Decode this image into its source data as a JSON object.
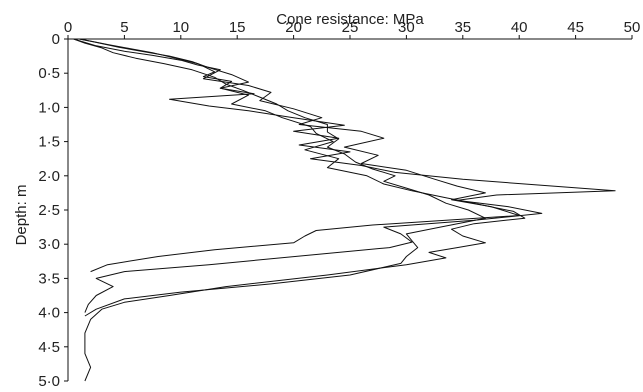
{
  "chart_data": {
    "type": "line",
    "orientation": "depth-profile",
    "xlabel": "Cone resistance: MPa",
    "ylabel": "Depth: m",
    "x_axis_position": "top",
    "y_axis_inverted": true,
    "xlim": [
      0,
      50
    ],
    "ylim": [
      0,
      5.0
    ],
    "x_ticks": [
      {
        "value": 0,
        "label": "0"
      },
      {
        "value": 5,
        "label": "5"
      },
      {
        "value": 10,
        "label": "10"
      },
      {
        "value": 15,
        "label": "15"
      },
      {
        "value": 20,
        "label": "20"
      },
      {
        "value": 25,
        "label": "25"
      },
      {
        "value": 30,
        "label": "30"
      },
      {
        "value": 35,
        "label": "35"
      },
      {
        "value": 40,
        "label": "40"
      },
      {
        "value": 45,
        "label": "45"
      },
      {
        "value": 50,
        "label": "50"
      }
    ],
    "y_ticks": [
      {
        "value": 0,
        "label": "0"
      },
      {
        "value": 0.5,
        "label": "0·5"
      },
      {
        "value": 1.0,
        "label": "1·0"
      },
      {
        "value": 1.5,
        "label": "1·5"
      },
      {
        "value": 2.0,
        "label": "2·0"
      },
      {
        "value": 2.5,
        "label": "2·5"
      },
      {
        "value": 3.0,
        "label": "3·0"
      },
      {
        "value": 3.5,
        "label": "3·5"
      },
      {
        "value": 4.0,
        "label": "4·0"
      },
      {
        "value": 4.5,
        "label": "4·5"
      },
      {
        "value": 5.0,
        "label": "5·0"
      }
    ],
    "grid": false,
    "legend": "none",
    "line_color": "#111111",
    "series": [
      {
        "points": [
          {
            "x": 1.0,
            "y": 0.0
          },
          {
            "x": 2.0,
            "y": 0.03
          },
          {
            "x": 3.5,
            "y": 0.08
          },
          {
            "x": 5.5,
            "y": 0.14
          },
          {
            "x": 7.5,
            "y": 0.2
          },
          {
            "x": 9.5,
            "y": 0.28
          },
          {
            "x": 11.5,
            "y": 0.36
          },
          {
            "x": 13.0,
            "y": 0.48
          },
          {
            "x": 12.0,
            "y": 0.55
          },
          {
            "x": 14.5,
            "y": 0.62
          },
          {
            "x": 13.5,
            "y": 0.72
          },
          {
            "x": 16.0,
            "y": 0.82
          },
          {
            "x": 14.5,
            "y": 0.95
          },
          {
            "x": 17.5,
            "y": 1.05
          },
          {
            "x": 19.0,
            "y": 1.15
          },
          {
            "x": 21.5,
            "y": 1.28
          },
          {
            "x": 22.0,
            "y": 1.38
          },
          {
            "x": 23.5,
            "y": 1.5
          },
          {
            "x": 21.0,
            "y": 1.62
          },
          {
            "x": 24.0,
            "y": 1.75
          },
          {
            "x": 23.0,
            "y": 1.88
          },
          {
            "x": 26.5,
            "y": 2.0
          },
          {
            "x": 28.0,
            "y": 2.12
          },
          {
            "x": 30.5,
            "y": 2.22
          },
          {
            "x": 33.5,
            "y": 2.32
          },
          {
            "x": 36.5,
            "y": 2.42
          },
          {
            "x": 39.5,
            "y": 2.52
          },
          {
            "x": 40.5,
            "y": 2.62
          },
          {
            "x": 36.0,
            "y": 2.7
          },
          {
            "x": 34.0,
            "y": 2.78
          },
          {
            "x": 35.0,
            "y": 2.88
          },
          {
            "x": 37.0,
            "y": 2.98
          },
          {
            "x": 34.5,
            "y": 3.05
          },
          {
            "x": 32.0,
            "y": 3.12
          },
          {
            "x": 33.5,
            "y": 3.2
          },
          {
            "x": 30.0,
            "y": 3.3
          },
          {
            "x": 23.0,
            "y": 3.45
          },
          {
            "x": 14.0,
            "y": 3.62
          },
          {
            "x": 9.0,
            "y": 3.75
          },
          {
            "x": 5.0,
            "y": 3.85
          },
          {
            "x": 3.0,
            "y": 3.95
          },
          {
            "x": 2.0,
            "y": 4.1
          },
          {
            "x": 1.5,
            "y": 4.3
          },
          {
            "x": 1.5,
            "y": 4.6
          },
          {
            "x": 2.0,
            "y": 4.8
          },
          {
            "x": 1.5,
            "y": 5.0
          }
        ]
      },
      {
        "points": [
          {
            "x": 1.0,
            "y": 0.0
          },
          {
            "x": 2.5,
            "y": 0.05
          },
          {
            "x": 4.5,
            "y": 0.12
          },
          {
            "x": 6.5,
            "y": 0.18
          },
          {
            "x": 9.0,
            "y": 0.25
          },
          {
            "x": 11.0,
            "y": 0.33
          },
          {
            "x": 12.5,
            "y": 0.42
          },
          {
            "x": 14.5,
            "y": 0.52
          },
          {
            "x": 16.0,
            "y": 0.63
          },
          {
            "x": 13.5,
            "y": 0.72
          },
          {
            "x": 16.5,
            "y": 0.8
          },
          {
            "x": 9.0,
            "y": 0.88
          },
          {
            "x": 12.5,
            "y": 0.98
          },
          {
            "x": 16.0,
            "y": 1.05
          },
          {
            "x": 20.0,
            "y": 1.15
          },
          {
            "x": 24.5,
            "y": 1.26
          },
          {
            "x": 20.0,
            "y": 1.35
          },
          {
            "x": 24.0,
            "y": 1.45
          },
          {
            "x": 20.5,
            "y": 1.55
          },
          {
            "x": 25.0,
            "y": 1.65
          },
          {
            "x": 21.5,
            "y": 1.75
          },
          {
            "x": 26.0,
            "y": 1.85
          },
          {
            "x": 29.0,
            "y": 1.95
          },
          {
            "x": 35.0,
            "y": 2.05
          },
          {
            "x": 40.5,
            "y": 2.12
          },
          {
            "x": 48.5,
            "y": 2.22
          },
          {
            "x": 38.0,
            "y": 2.28
          },
          {
            "x": 34.5,
            "y": 2.36
          },
          {
            "x": 39.0,
            "y": 2.45
          },
          {
            "x": 42.0,
            "y": 2.55
          },
          {
            "x": 36.0,
            "y": 2.65
          },
          {
            "x": 28.0,
            "y": 2.75
          },
          {
            "x": 29.5,
            "y": 2.85
          },
          {
            "x": 30.5,
            "y": 2.97
          },
          {
            "x": 28.5,
            "y": 3.05
          },
          {
            "x": 22.0,
            "y": 3.15
          },
          {
            "x": 12.5,
            "y": 3.3
          },
          {
            "x": 5.0,
            "y": 3.4
          },
          {
            "x": 2.5,
            "y": 3.5
          },
          {
            "x": 4.0,
            "y": 3.62
          },
          {
            "x": 2.5,
            "y": 3.75
          },
          {
            "x": 1.8,
            "y": 3.88
          },
          {
            "x": 1.5,
            "y": 4.0
          }
        ]
      },
      {
        "points": [
          {
            "x": 0.5,
            "y": 0.0
          },
          {
            "x": 2.5,
            "y": 0.1
          },
          {
            "x": 5.0,
            "y": 0.18
          },
          {
            "x": 7.5,
            "y": 0.24
          },
          {
            "x": 10.0,
            "y": 0.31
          },
          {
            "x": 11.5,
            "y": 0.38
          },
          {
            "x": 13.5,
            "y": 0.45
          },
          {
            "x": 12.0,
            "y": 0.58
          },
          {
            "x": 16.0,
            "y": 0.68
          },
          {
            "x": 18.0,
            "y": 0.78
          },
          {
            "x": 17.0,
            "y": 0.9
          },
          {
            "x": 20.0,
            "y": 1.02
          },
          {
            "x": 22.5,
            "y": 1.15
          },
          {
            "x": 20.5,
            "y": 1.25
          },
          {
            "x": 26.0,
            "y": 1.35
          },
          {
            "x": 28.0,
            "y": 1.45
          },
          {
            "x": 24.5,
            "y": 1.58
          },
          {
            "x": 27.5,
            "y": 1.7
          },
          {
            "x": 26.0,
            "y": 1.82
          },
          {
            "x": 30.0,
            "y": 1.92
          },
          {
            "x": 32.5,
            "y": 2.05
          },
          {
            "x": 34.5,
            "y": 2.15
          },
          {
            "x": 37.0,
            "y": 2.25
          },
          {
            "x": 34.0,
            "y": 2.35
          },
          {
            "x": 37.5,
            "y": 2.45
          },
          {
            "x": 40.0,
            "y": 2.58
          },
          {
            "x": 27.0,
            "y": 2.72
          },
          {
            "x": 22.0,
            "y": 2.8
          },
          {
            "x": 21.0,
            "y": 2.88
          },
          {
            "x": 20.0,
            "y": 2.98
          },
          {
            "x": 13.0,
            "y": 3.08
          },
          {
            "x": 8.0,
            "y": 3.18
          },
          {
            "x": 3.5,
            "y": 3.3
          },
          {
            "x": 2.0,
            "y": 3.4
          }
        ]
      },
      {
        "points": [
          {
            "x": 0.5,
            "y": 0.0
          },
          {
            "x": 1.5,
            "y": 0.06
          },
          {
            "x": 3.0,
            "y": 0.13
          },
          {
            "x": 4.0,
            "y": 0.2
          },
          {
            "x": 6.0,
            "y": 0.28
          },
          {
            "x": 8.5,
            "y": 0.36
          },
          {
            "x": 11.0,
            "y": 0.45
          },
          {
            "x": 13.0,
            "y": 0.56
          },
          {
            "x": 14.0,
            "y": 0.66
          },
          {
            "x": 15.5,
            "y": 0.75
          },
          {
            "x": 17.0,
            "y": 0.85
          },
          {
            "x": 18.5,
            "y": 0.95
          },
          {
            "x": 19.5,
            "y": 1.05
          },
          {
            "x": 21.0,
            "y": 1.15
          },
          {
            "x": 23.0,
            "y": 1.25
          },
          {
            "x": 23.0,
            "y": 1.36
          },
          {
            "x": 24.0,
            "y": 1.46
          },
          {
            "x": 23.0,
            "y": 1.58
          },
          {
            "x": 24.5,
            "y": 1.68
          },
          {
            "x": 25.5,
            "y": 1.8
          },
          {
            "x": 27.0,
            "y": 1.9
          },
          {
            "x": 29.0,
            "y": 2.0
          },
          {
            "x": 28.0,
            "y": 2.08
          },
          {
            "x": 30.0,
            "y": 2.18
          },
          {
            "x": 32.0,
            "y": 2.28
          },
          {
            "x": 33.5,
            "y": 2.4
          },
          {
            "x": 35.5,
            "y": 2.5
          },
          {
            "x": 37.0,
            "y": 2.62
          },
          {
            "x": 33.0,
            "y": 2.75
          },
          {
            "x": 30.0,
            "y": 2.85
          },
          {
            "x": 30.5,
            "y": 2.95
          },
          {
            "x": 31.0,
            "y": 3.05
          },
          {
            "x": 30.0,
            "y": 3.18
          },
          {
            "x": 29.5,
            "y": 3.28
          },
          {
            "x": 25.0,
            "y": 3.45
          },
          {
            "x": 18.0,
            "y": 3.58
          },
          {
            "x": 10.0,
            "y": 3.7
          },
          {
            "x": 5.0,
            "y": 3.8
          },
          {
            "x": 2.5,
            "y": 3.95
          },
          {
            "x": 1.5,
            "y": 4.05
          }
        ]
      }
    ]
  }
}
